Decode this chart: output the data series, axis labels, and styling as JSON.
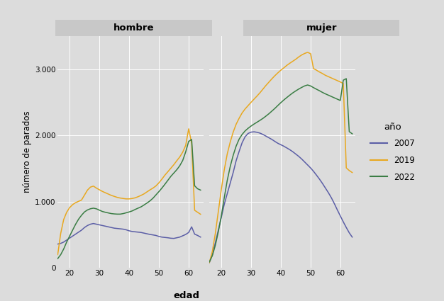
{
  "facet_labels": [
    "hombre",
    "mujer"
  ],
  "xlabel": "edad",
  "ylabel": "número de parados",
  "legend_title": "año",
  "legend_labels": [
    "2007",
    "2019",
    "2022"
  ],
  "colors": [
    "#5b5ea6",
    "#e8a820",
    "#3a7d44"
  ],
  "ylim": [
    0,
    3500
  ],
  "yticks": [
    0,
    1000,
    2000,
    3000
  ],
  "ytick_labels": [
    "0",
    "1.000",
    "2.000",
    "3.000"
  ],
  "xlim": [
    16,
    65
  ],
  "xticks": [
    20,
    30,
    40,
    50,
    60
  ],
  "bg_color": "#dcdcdc",
  "outer_bg": "#dcdcdc",
  "strip_color": "#c8c8c8",
  "hombre_2007": [
    [
      16,
      360
    ],
    [
      17,
      370
    ],
    [
      18,
      390
    ],
    [
      19,
      420
    ],
    [
      20,
      450
    ],
    [
      21,
      480
    ],
    [
      22,
      510
    ],
    [
      23,
      540
    ],
    [
      24,
      570
    ],
    [
      25,
      610
    ],
    [
      26,
      640
    ],
    [
      27,
      660
    ],
    [
      28,
      670
    ],
    [
      29,
      660
    ],
    [
      30,
      650
    ],
    [
      31,
      640
    ],
    [
      32,
      630
    ],
    [
      33,
      620
    ],
    [
      34,
      610
    ],
    [
      35,
      600
    ],
    [
      36,
      595
    ],
    [
      37,
      590
    ],
    [
      38,
      585
    ],
    [
      39,
      575
    ],
    [
      40,
      560
    ],
    [
      41,
      550
    ],
    [
      42,
      545
    ],
    [
      43,
      540
    ],
    [
      44,
      535
    ],
    [
      45,
      525
    ],
    [
      46,
      515
    ],
    [
      47,
      505
    ],
    [
      48,
      498
    ],
    [
      49,
      490
    ],
    [
      50,
      475
    ],
    [
      51,
      465
    ],
    [
      52,
      460
    ],
    [
      53,
      455
    ],
    [
      54,
      448
    ],
    [
      55,
      445
    ],
    [
      56,
      455
    ],
    [
      57,
      465
    ],
    [
      58,
      485
    ],
    [
      59,
      505
    ],
    [
      60,
      535
    ],
    [
      61,
      620
    ],
    [
      62,
      510
    ],
    [
      63,
      490
    ],
    [
      64,
      465
    ]
  ],
  "hombre_2019": [
    [
      16,
      200
    ],
    [
      17,
      520
    ],
    [
      18,
      730
    ],
    [
      19,
      840
    ],
    [
      20,
      910
    ],
    [
      21,
      955
    ],
    [
      22,
      985
    ],
    [
      23,
      1005
    ],
    [
      24,
      1025
    ],
    [
      25,
      1100
    ],
    [
      26,
      1175
    ],
    [
      27,
      1220
    ],
    [
      28,
      1235
    ],
    [
      29,
      1205
    ],
    [
      30,
      1180
    ],
    [
      31,
      1155
    ],
    [
      32,
      1135
    ],
    [
      33,
      1115
    ],
    [
      34,
      1095
    ],
    [
      35,
      1080
    ],
    [
      36,
      1065
    ],
    [
      37,
      1055
    ],
    [
      38,
      1048
    ],
    [
      39,
      1042
    ],
    [
      40,
      1042
    ],
    [
      41,
      1048
    ],
    [
      42,
      1058
    ],
    [
      43,
      1075
    ],
    [
      44,
      1095
    ],
    [
      45,
      1118
    ],
    [
      46,
      1148
    ],
    [
      47,
      1178
    ],
    [
      48,
      1205
    ],
    [
      49,
      1238
    ],
    [
      50,
      1285
    ],
    [
      51,
      1340
    ],
    [
      52,
      1400
    ],
    [
      53,
      1452
    ],
    [
      54,
      1505
    ],
    [
      55,
      1558
    ],
    [
      56,
      1618
    ],
    [
      57,
      1675
    ],
    [
      58,
      1748
    ],
    [
      59,
      1850
    ],
    [
      60,
      2100
    ],
    [
      61,
      1880
    ],
    [
      62,
      870
    ],
    [
      63,
      840
    ],
    [
      64,
      810
    ]
  ],
  "hombre_2022": [
    [
      16,
      140
    ],
    [
      17,
      200
    ],
    [
      18,
      285
    ],
    [
      19,
      390
    ],
    [
      20,
      480
    ],
    [
      21,
      570
    ],
    [
      22,
      658
    ],
    [
      23,
      735
    ],
    [
      24,
      795
    ],
    [
      25,
      845
    ],
    [
      26,
      875
    ],
    [
      27,
      893
    ],
    [
      28,
      902
    ],
    [
      29,
      892
    ],
    [
      30,
      872
    ],
    [
      31,
      852
    ],
    [
      32,
      840
    ],
    [
      33,
      830
    ],
    [
      34,
      820
    ],
    [
      35,
      815
    ],
    [
      36,
      812
    ],
    [
      37,
      812
    ],
    [
      38,
      820
    ],
    [
      39,
      832
    ],
    [
      40,
      845
    ],
    [
      41,
      860
    ],
    [
      42,
      882
    ],
    [
      43,
      902
    ],
    [
      44,
      922
    ],
    [
      45,
      950
    ],
    [
      46,
      980
    ],
    [
      47,
      1012
    ],
    [
      48,
      1052
    ],
    [
      49,
      1102
    ],
    [
      50,
      1152
    ],
    [
      51,
      1205
    ],
    [
      52,
      1262
    ],
    [
      53,
      1322
    ],
    [
      54,
      1382
    ],
    [
      55,
      1432
    ],
    [
      56,
      1482
    ],
    [
      57,
      1542
    ],
    [
      58,
      1622
    ],
    [
      59,
      1752
    ],
    [
      60,
      1910
    ],
    [
      61,
      1940
    ],
    [
      62,
      1240
    ],
    [
      63,
      1195
    ],
    [
      64,
      1175
    ]
  ],
  "mujer_2007": [
    [
      16,
      80
    ],
    [
      17,
      200
    ],
    [
      18,
      380
    ],
    [
      19,
      570
    ],
    [
      20,
      760
    ],
    [
      21,
      960
    ],
    [
      22,
      1120
    ],
    [
      23,
      1280
    ],
    [
      24,
      1440
    ],
    [
      25,
      1620
    ],
    [
      26,
      1760
    ],
    [
      27,
      1890
    ],
    [
      28,
      1980
    ],
    [
      29,
      2030
    ],
    [
      30,
      2050
    ],
    [
      31,
      2055
    ],
    [
      32,
      2048
    ],
    [
      33,
      2035
    ],
    [
      34,
      2015
    ],
    [
      35,
      1990
    ],
    [
      36,
      1965
    ],
    [
      37,
      1940
    ],
    [
      38,
      1910
    ],
    [
      39,
      1882
    ],
    [
      40,
      1860
    ],
    [
      41,
      1838
    ],
    [
      42,
      1812
    ],
    [
      43,
      1785
    ],
    [
      44,
      1755
    ],
    [
      45,
      1720
    ],
    [
      46,
      1685
    ],
    [
      47,
      1645
    ],
    [
      48,
      1600
    ],
    [
      49,
      1555
    ],
    [
      50,
      1510
    ],
    [
      51,
      1458
    ],
    [
      52,
      1400
    ],
    [
      53,
      1340
    ],
    [
      54,
      1275
    ],
    [
      55,
      1205
    ],
    [
      56,
      1135
    ],
    [
      57,
      1058
    ],
    [
      58,
      970
    ],
    [
      59,
      875
    ],
    [
      60,
      785
    ],
    [
      61,
      695
    ],
    [
      62,
      610
    ],
    [
      63,
      530
    ],
    [
      64,
      465
    ]
  ],
  "mujer_2019": [
    [
      16,
      80
    ],
    [
      17,
      250
    ],
    [
      18,
      520
    ],
    [
      19,
      850
    ],
    [
      20,
      1180
    ],
    [
      21,
      1480
    ],
    [
      22,
      1720
    ],
    [
      23,
      1900
    ],
    [
      24,
      2050
    ],
    [
      25,
      2170
    ],
    [
      26,
      2260
    ],
    [
      27,
      2340
    ],
    [
      28,
      2400
    ],
    [
      29,
      2450
    ],
    [
      30,
      2500
    ],
    [
      31,
      2548
    ],
    [
      32,
      2595
    ],
    [
      33,
      2645
    ],
    [
      34,
      2700
    ],
    [
      35,
      2755
    ],
    [
      36,
      2805
    ],
    [
      37,
      2855
    ],
    [
      38,
      2902
    ],
    [
      39,
      2945
    ],
    [
      40,
      2985
    ],
    [
      41,
      3020
    ],
    [
      42,
      3058
    ],
    [
      43,
      3090
    ],
    [
      44,
      3120
    ],
    [
      45,
      3150
    ],
    [
      46,
      3185
    ],
    [
      47,
      3215
    ],
    [
      48,
      3238
    ],
    [
      49,
      3255
    ],
    [
      50,
      3235
    ],
    [
      51,
      3010
    ],
    [
      52,
      2985
    ],
    [
      53,
      2958
    ],
    [
      54,
      2935
    ],
    [
      55,
      2908
    ],
    [
      56,
      2888
    ],
    [
      57,
      2868
    ],
    [
      58,
      2848
    ],
    [
      59,
      2828
    ],
    [
      60,
      2808
    ],
    [
      61,
      2785
    ],
    [
      62,
      1510
    ],
    [
      63,
      1470
    ],
    [
      64,
      1440
    ]
  ],
  "mujer_2022": [
    [
      16,
      90
    ],
    [
      17,
      185
    ],
    [
      18,
      340
    ],
    [
      19,
      545
    ],
    [
      20,
      780
    ],
    [
      21,
      1060
    ],
    [
      22,
      1320
    ],
    [
      23,
      1530
    ],
    [
      24,
      1700
    ],
    [
      25,
      1840
    ],
    [
      26,
      1945
    ],
    [
      27,
      2015
    ],
    [
      28,
      2068
    ],
    [
      29,
      2108
    ],
    [
      30,
      2142
    ],
    [
      31,
      2172
    ],
    [
      32,
      2200
    ],
    [
      33,
      2228
    ],
    [
      34,
      2258
    ],
    [
      35,
      2292
    ],
    [
      36,
      2328
    ],
    [
      37,
      2368
    ],
    [
      38,
      2408
    ],
    [
      39,
      2452
    ],
    [
      40,
      2495
    ],
    [
      41,
      2535
    ],
    [
      42,
      2572
    ],
    [
      43,
      2608
    ],
    [
      44,
      2642
    ],
    [
      45,
      2672
    ],
    [
      46,
      2700
    ],
    [
      47,
      2725
    ],
    [
      48,
      2748
    ],
    [
      49,
      2762
    ],
    [
      50,
      2748
    ],
    [
      51,
      2722
    ],
    [
      52,
      2698
    ],
    [
      53,
      2675
    ],
    [
      54,
      2650
    ],
    [
      55,
      2628
    ],
    [
      56,
      2608
    ],
    [
      57,
      2588
    ],
    [
      58,
      2568
    ],
    [
      59,
      2548
    ],
    [
      60,
      2528
    ],
    [
      61,
      2835
    ],
    [
      62,
      2858
    ],
    [
      63,
      2058
    ],
    [
      64,
      2025
    ]
  ]
}
